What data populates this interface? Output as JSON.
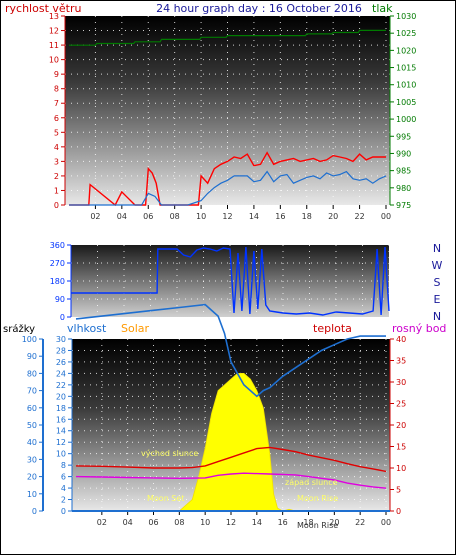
{
  "header": {
    "title": "24 hour graph day : 16 October 2016",
    "left_label": "rychlost větru",
    "right_label": "tlak"
  },
  "panel3_labels": {
    "rain": "srážky",
    "humidity": "vlhkost",
    "solar": "Solar",
    "temperature": "teplota",
    "dewpoint": "rosný bod"
  },
  "annotations": {
    "sunrise": "východ slunce",
    "sunset": "západ slunce",
    "moonset": "Moon Set",
    "moonrise": "Moon Rise",
    "moonrise_axis": "Moon Rise"
  },
  "colors": {
    "wind": "#ff0000",
    "gust": "#1e6fd0",
    "pressure": "#007a00",
    "direction": "#0033ff",
    "humidity": "#1e6fd0",
    "temperature": "#e00000",
    "dewpoint": "#e000e0",
    "solar": "#ffff00",
    "rain_axis": "#1e6fd0",
    "solar_label": "#ff9900"
  },
  "chart_data": [
    {
      "type": "line",
      "name": "wind-pressure",
      "x_ticks": [
        "02",
        "04",
        "06",
        "08",
        "10",
        "12",
        "14",
        "16",
        "18",
        "20",
        "22",
        "00"
      ],
      "left_axis": {
        "label": "rychlost větru",
        "range": [
          0,
          13
        ],
        "ticks": [
          0,
          1,
          2,
          3,
          4,
          5,
          6,
          7,
          8,
          9,
          10,
          11,
          12,
          13
        ]
      },
      "right_axis": {
        "label": "tlak",
        "range": [
          975,
          1030
        ],
        "ticks": [
          975,
          980,
          985,
          990,
          995,
          1000,
          1005,
          1010,
          1015,
          1020,
          1025,
          1030
        ]
      },
      "series": [
        {
          "axis": "left",
          "x": [
            0,
            1.5,
            1.6,
            3.5,
            4,
            5,
            5.8,
            6,
            6.3,
            6.6,
            6.9,
            7.5,
            8,
            9,
            9.8,
            10,
            10.5,
            11,
            11.5,
            12,
            12.5,
            13,
            13.5,
            14,
            14.5,
            15,
            15.5,
            16,
            16.5,
            17,
            17.5,
            18,
            18.5,
            19,
            19.5,
            20,
            20.5,
            21,
            21.5,
            22,
            22.5,
            23,
            23.5,
            24
          ],
          "values": [
            0,
            0,
            1.4,
            0,
            0.9,
            0,
            0,
            2.5,
            2.2,
            1.5,
            0,
            0,
            0,
            0,
            0,
            2,
            1.5,
            2.5,
            2.8,
            3,
            3.3,
            3.2,
            3.5,
            2.7,
            2.8,
            3.6,
            2.8,
            3.0,
            3.1,
            3.2,
            3.0,
            3.1,
            3.2,
            3.0,
            3.1,
            3.4,
            3.3,
            3.2,
            3.0,
            3.5,
            3.1,
            3.3,
            3.3,
            3.3
          ]
        },
        {
          "axis": "left",
          "x": [
            0,
            5.5,
            6,
            6.5,
            7,
            8,
            9,
            10,
            10.5,
            11,
            11.5,
            12,
            12.5,
            13,
            13.5,
            14,
            14.5,
            15,
            15.5,
            16,
            16.5,
            17,
            17.5,
            18,
            18.5,
            19,
            19.5,
            20,
            20.5,
            21,
            21.5,
            22,
            22.5,
            23,
            23.5,
            24
          ],
          "values": [
            0,
            0,
            0.8,
            0.6,
            0,
            0,
            0,
            0.3,
            0.8,
            1.2,
            1.5,
            1.7,
            2.0,
            2.0,
            2.0,
            1.6,
            1.7,
            2.3,
            1.6,
            2.0,
            2.1,
            1.5,
            1.7,
            1.9,
            2.0,
            1.8,
            2.2,
            2.0,
            2.1,
            2.3,
            1.8,
            1.7,
            1.8,
            1.5,
            1.8,
            2.0
          ]
        },
        {
          "axis": "right",
          "x": [
            0,
            2,
            2.1,
            4.9,
            5,
            6.9,
            7,
            9.9,
            10,
            11.9,
            12,
            17.9,
            18,
            19.9,
            20,
            21.9,
            22,
            24
          ],
          "values": [
            1021.5,
            1021.5,
            1022.0,
            1022.0,
            1022.5,
            1022.5,
            1023.2,
            1023.2,
            1023.8,
            1023.8,
            1024.3,
            1024.3,
            1024.8,
            1024.8,
            1025.2,
            1025.2,
            1025.8,
            1025.8
          ]
        }
      ]
    },
    {
      "type": "line",
      "name": "wind-direction",
      "left_axis": {
        "range": [
          0,
          360
        ],
        "ticks": [
          0,
          90,
          180,
          270,
          360
        ]
      },
      "right_axis": {
        "ticks": [
          "N",
          "W",
          "S",
          "E",
          "N"
        ]
      },
      "series": [
        {
          "x": [
            0,
            6.5,
            6.55,
            8,
            8.5,
            9,
            9.5,
            10,
            10.5,
            11,
            11.5,
            12,
            12.3,
            12.6,
            12.9,
            13.2,
            13.5,
            13.8,
            14.1,
            14.4,
            14.7,
            15,
            15.5,
            16,
            17,
            18,
            19,
            20,
            21,
            22,
            22.8,
            23.1,
            23.4,
            23.7,
            24
          ],
          "values": [
            120,
            120,
            340,
            340,
            310,
            300,
            335,
            345,
            340,
            330,
            345,
            340,
            20,
            320,
            30,
            350,
            15,
            330,
            40,
            340,
            60,
            30,
            25,
            20,
            15,
            20,
            10,
            25,
            20,
            15,
            30,
            340,
            10,
            350,
            30
          ]
        }
      ]
    },
    {
      "type": "line",
      "name": "humidity-temperature-solar",
      "left_axis_outer": {
        "label": "srážky",
        "range": [
          0,
          100
        ],
        "ticks": [
          0,
          10,
          20,
          30,
          40,
          50,
          60,
          70,
          80,
          90,
          100
        ]
      },
      "left_axis_inner": {
        "label": "vlhkost",
        "range": [
          0,
          30
        ],
        "ticks": [
          0,
          2,
          4,
          6,
          8,
          10,
          12,
          14,
          16,
          18,
          20,
          22,
          24,
          26,
          28,
          30
        ]
      },
      "right_axis": {
        "label": "teplota",
        "range": [
          0,
          40
        ],
        "ticks": [
          0,
          5,
          10,
          15,
          20,
          25,
          30,
          35,
          40
        ]
      },
      "series": [
        {
          "name": "vlhkost",
          "x": [
            0,
            2,
            4,
            6,
            8,
            10,
            11,
            11.5,
            12,
            13,
            14,
            14.5,
            15,
            16,
            17,
            18,
            19,
            20,
            21,
            22,
            23,
            24
          ],
          "values": [
            33.5,
            34,
            34.5,
            35,
            35.5,
            36,
            34,
            31,
            26,
            22,
            20,
            21,
            21.5,
            23.5,
            25,
            26.5,
            28,
            29,
            30,
            30.5,
            30.5,
            30.5
          ]
        },
        {
          "name": "teplota",
          "x": [
            0,
            2,
            4,
            6,
            8,
            9,
            10,
            11,
            12,
            13,
            14,
            15,
            16,
            17,
            18,
            19,
            20,
            21,
            22,
            23,
            24
          ],
          "values": [
            10.5,
            10.4,
            10.2,
            10.0,
            10.0,
            10.1,
            10.5,
            11.5,
            12.5,
            13.5,
            14.5,
            14.8,
            14.3,
            13.8,
            13.0,
            12.4,
            11.8,
            11.0,
            10.3,
            9.8,
            9.2
          ]
        },
        {
          "name": "rosný bod",
          "x": [
            0,
            2,
            4,
            6,
            8,
            10,
            11,
            12,
            13,
            14,
            15,
            16,
            17,
            18,
            19,
            20,
            21,
            22,
            23,
            24
          ],
          "values": [
            8.0,
            7.9,
            7.8,
            7.7,
            7.6,
            7.7,
            8.3,
            8.6,
            8.8,
            8.7,
            8.6,
            8.5,
            8.4,
            8.0,
            7.6,
            7.2,
            6.5,
            6.0,
            5.6,
            5.3
          ]
        },
        {
          "name": "Solar",
          "x": [
            7.2,
            8,
            9,
            9.5,
            10,
            10.5,
            11,
            11.5,
            12,
            12.5,
            13,
            13.5,
            14,
            14.5,
            15,
            15.3,
            15.6,
            16,
            16.5,
            17,
            17.5
          ],
          "values": [
            0,
            0,
            2,
            6,
            11,
            17,
            21,
            22,
            23,
            24,
            24,
            23,
            21,
            18,
            10,
            3,
            0.5,
            0,
            0.3,
            0,
            0
          ]
        }
      ],
      "x_ticks": [
        "02",
        "04",
        "06",
        "08",
        "10",
        "12",
        "14",
        "16",
        "18",
        "20",
        "22",
        "00"
      ]
    }
  ]
}
